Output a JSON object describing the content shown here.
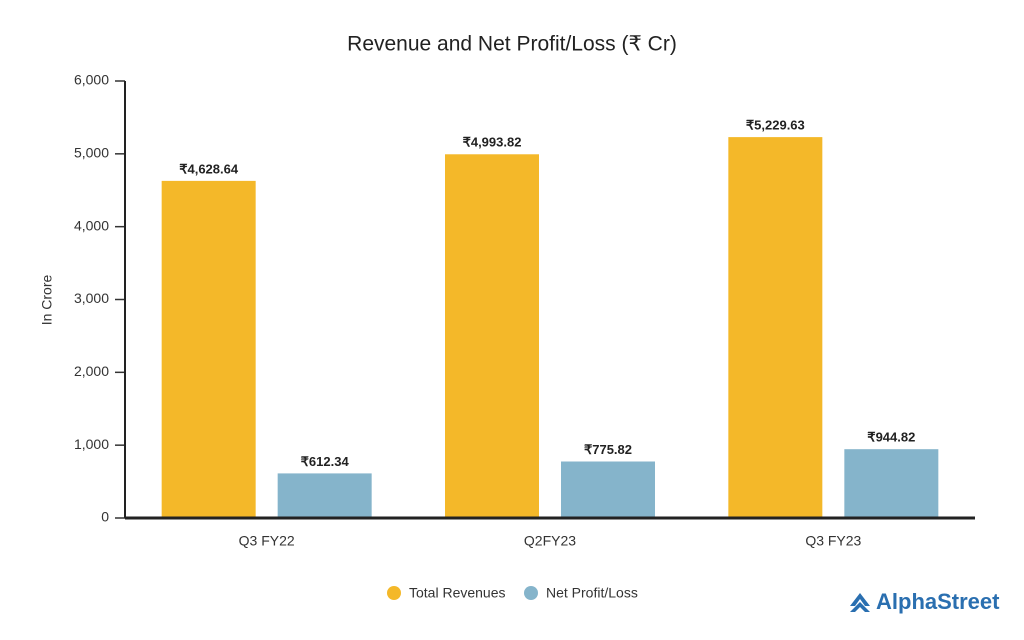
{
  "chart_data": {
    "type": "bar",
    "title": "Revenue and Net Profit/Loss (₹ Cr)",
    "y_label": "In Crore",
    "categories": [
      "Q3 FY22",
      "Q2FY23",
      "Q3 FY23"
    ],
    "series": [
      {
        "name": "Total Revenues",
        "color": "#f4b829",
        "values": [
          4628.64,
          4993.82,
          5229.63
        ],
        "value_labels": [
          "₹4,628.64",
          "₹4,993.82",
          "₹5,229.63"
        ]
      },
      {
        "name": "Net Profit/Loss",
        "color": "#85b4cb",
        "values": [
          612.34,
          775.82,
          944.82
        ],
        "value_labels": [
          "₹612.34",
          "₹775.82",
          "₹944.82"
        ]
      }
    ],
    "ylim": [
      0,
      6000
    ],
    "yticks": [
      0,
      {
        "value": 1000,
        "label": "1,000"
      },
      {
        "value": 2000,
        "label": "2,000"
      },
      {
        "value": 3000,
        "label": "3,000"
      },
      {
        "value": 4000,
        "label": "4,000"
      },
      {
        "value": 5000,
        "label": "5,000"
      },
      {
        "value": 6000,
        "label": "6,000"
      }
    ],
    "grid": false,
    "legend": "bottom"
  },
  "brand": "AlphaStreet"
}
